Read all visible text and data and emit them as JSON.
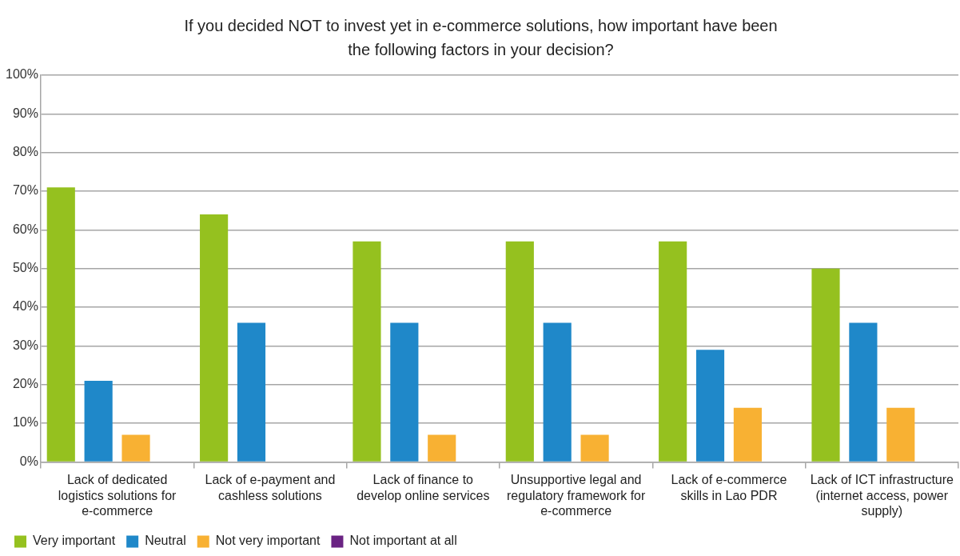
{
  "chart_data": {
    "type": "bar",
    "title": "If you decided NOT to invest yet in e-commerce solutions, how important have been the following factors in your decision?",
    "categories": [
      "Lack of dedicated logistics solutions for e-commerce",
      "Lack of e-payment and cashless solutions",
      "Lack of finance to develop online services",
      "Unsupportive legal and regulatory framework for e-commerce",
      "Lack of e-commerce skills in Lao PDR",
      "Lack of ICT infrastructure (internet access, power supply)"
    ],
    "series": [
      {
        "name": "Very important",
        "color": "#95c11f",
        "values": [
          71,
          64,
          57,
          57,
          57,
          50
        ]
      },
      {
        "name": "Neutral",
        "color": "#1f88c9",
        "values": [
          21,
          36,
          36,
          36,
          29,
          36
        ]
      },
      {
        "name": "Not very important",
        "color": "#f8b133",
        "values": [
          7,
          0,
          7,
          7,
          14,
          14
        ]
      },
      {
        "name": "Not important at all",
        "color": "#6a2383",
        "values": [
          0,
          0,
          0,
          0,
          0,
          0
        ]
      }
    ],
    "ylim": [
      0,
      100
    ],
    "yticks": [
      {
        "value": 0,
        "label": "0%"
      },
      {
        "value": 10,
        "label": "10%"
      },
      {
        "value": 20,
        "label": "20%"
      },
      {
        "value": 30,
        "label": "30%"
      },
      {
        "value": 40,
        "label": "40%"
      },
      {
        "value": 50,
        "label": "50%"
      },
      {
        "value": 60,
        "label": "60%"
      },
      {
        "value": 70,
        "label": "70%"
      },
      {
        "value": 80,
        "label": "80%"
      },
      {
        "value": 90,
        "label": "90%"
      },
      {
        "value": 100,
        "label": "100%"
      }
    ],
    "grid": "y",
    "legend": "bottom left"
  }
}
